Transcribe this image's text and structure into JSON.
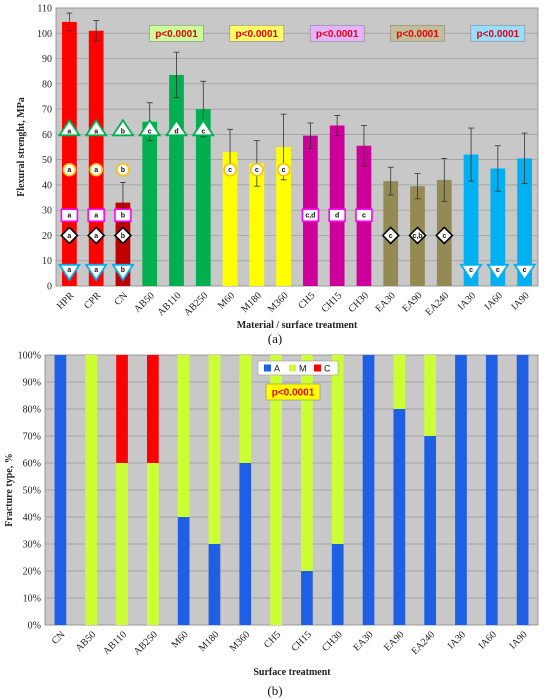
{
  "chart_data": [
    {
      "type": "bar",
      "panel_label": "(a)",
      "ylabel": "Flexural strenght, MPa",
      "xlabel": "Material / surface treatment",
      "ylim": [
        0,
        110
      ],
      "yticks": [
        0,
        10,
        20,
        30,
        40,
        50,
        60,
        70,
        80,
        90,
        100,
        110
      ],
      "grid": true,
      "categories": [
        "HPR",
        "CPR",
        "CN",
        "AB50",
        "AB110",
        "AB250",
        "M60",
        "M180",
        "M360",
        "CH5",
        "CH15",
        "CH30",
        "EA30",
        "EA90",
        "EA240",
        "IA30",
        "IA60",
        "IA90"
      ],
      "values": [
        104.5,
        101,
        33,
        65,
        83.5,
        70,
        53,
        48.5,
        55,
        59.5,
        63.5,
        55.5,
        41.5,
        39.5,
        42,
        52,
        46.5,
        50.5
      ],
      "errors": [
        3.5,
        4,
        8,
        7.5,
        9,
        11,
        9,
        9,
        13,
        5,
        4,
        8,
        5.5,
        5,
        8.5,
        10.5,
        9,
        10
      ],
      "colors": [
        "#ff0000",
        "#ff0000",
        "#c00000",
        "#00b050",
        "#00b050",
        "#00b050",
        "#ffff00",
        "#ffff00",
        "#ffff00",
        "#cc0099",
        "#cc0099",
        "#cc0099",
        "#948a54",
        "#948a54",
        "#948a54",
        "#00b0f0",
        "#00b0f0",
        "#00b0f0"
      ],
      "pvalue_boxes": [
        {
          "text": "p<0.0001",
          "center_category": 4,
          "y": 100,
          "fill": "#ccff99"
        },
        {
          "text": "p<0.0001",
          "center_category": 7,
          "y": 100,
          "fill": "#ffff66"
        },
        {
          "text": "p<0.0001",
          "center_category": 10,
          "y": 100,
          "fill": "#e6b3ff"
        },
        {
          "text": "p<0.0001",
          "center_category": 13,
          "y": 100,
          "fill": "#c4bd97"
        },
        {
          "text": "p<0.0001",
          "center_category": 16,
          "y": 100,
          "fill": "#99ddff"
        }
      ],
      "markers": [
        {
          "shape": "triangle-up",
          "y": 62,
          "color": "#00b050",
          "labels": [
            "a",
            "a",
            "b",
            "c",
            "d",
            "c"
          ],
          "categories": [
            0,
            1,
            2,
            3,
            4,
            5
          ]
        },
        {
          "shape": "circle",
          "y": 46,
          "color": "#ffc000",
          "labels": [
            "a",
            "a",
            "b",
            "c",
            "c",
            "c"
          ],
          "categories": [
            0,
            1,
            2,
            6,
            7,
            8
          ]
        },
        {
          "shape": "square",
          "y": 28,
          "color": "#ff00ff",
          "labels": [
            "a",
            "a",
            "b",
            "c,d",
            "d",
            "c"
          ],
          "categories": [
            0,
            1,
            2,
            9,
            10,
            11
          ]
        },
        {
          "shape": "diamond",
          "y": 20,
          "color": "#000000",
          "labels": [
            "a",
            "a",
            "b",
            "c",
            "c,b",
            "c"
          ],
          "categories": [
            0,
            1,
            2,
            12,
            13,
            14
          ]
        },
        {
          "shape": "triangle-down",
          "y": 6,
          "color": "#00b0f0",
          "labels": [
            "a",
            "a",
            "b",
            "c",
            "c",
            "c"
          ],
          "categories": [
            0,
            1,
            2,
            15,
            16,
            17
          ]
        }
      ]
    },
    {
      "type": "bar",
      "stacked": true,
      "panel_label": "(b)",
      "ylabel": "Fracture type, %",
      "xlabel": "Surface treatment",
      "ylim": [
        0,
        100
      ],
      "yticks": [
        "0%",
        "10%",
        "20%",
        "30%",
        "40%",
        "50%",
        "60%",
        "70%",
        "80%",
        "90%",
        "100%"
      ],
      "grid": true,
      "legend_position": "top-center",
      "pvalue_box": {
        "text": "p<0.0001",
        "fill": "#ffff00"
      },
      "categories": [
        "CN",
        "AB50",
        "AB110",
        "AB250",
        "M60",
        "M180",
        "M360",
        "CH5",
        "CH15",
        "CH30",
        "EA30",
        "EA90",
        "EA240",
        "IA30",
        "IA60",
        "IA90"
      ],
      "series": [
        {
          "name": "A",
          "color": "#1f5fe6",
          "values": [
            100,
            0,
            0,
            0,
            40,
            30,
            60,
            0,
            20,
            30,
            100,
            80,
            70,
            100,
            100,
            100
          ]
        },
        {
          "name": "M",
          "color": "#ccff33",
          "values": [
            0,
            100,
            60,
            60,
            60,
            70,
            40,
            100,
            80,
            70,
            0,
            20,
            30,
            0,
            0,
            0
          ]
        },
        {
          "name": "C",
          "color": "#ff0000",
          "values": [
            0,
            0,
            40,
            40,
            0,
            0,
            0,
            0,
            0,
            0,
            0,
            0,
            0,
            0,
            0,
            0
          ]
        }
      ]
    }
  ]
}
